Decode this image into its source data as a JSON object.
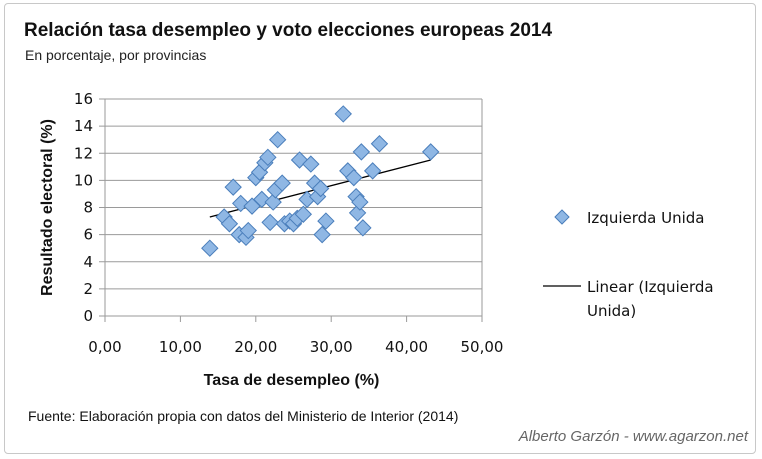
{
  "header": {
    "title": "Relación tasa desempleo y voto elecciones europeas 2014",
    "subtitle": "En porcentaje, por provincias"
  },
  "footer": {
    "source": "Fuente: Elaboración propia con datos del Ministerio de Interior (2014)",
    "credit": "Alberto Garzón - www.agarzon.net"
  },
  "colors": {
    "marker_fill": "#8fb7e4",
    "marker_stroke": "#4a7ebb",
    "trendline": "#000000",
    "grid": "#9a9a9a"
  },
  "chart_data": {
    "type": "scatter",
    "title": "Relación tasa desempleo y voto elecciones europeas 2014",
    "subtitle": "En porcentaje, por provincias",
    "xlabel": "Tasa de desempleo (%)",
    "ylabel": "Resultado electoral (%)",
    "xlim": [
      0,
      50
    ],
    "ylim": [
      0,
      16
    ],
    "x_ticks": [
      "0,00",
      "10,00",
      "20,00",
      "30,00",
      "40,00",
      "50,00"
    ],
    "y_ticks": [
      "0",
      "2",
      "4",
      "6",
      "8",
      "10",
      "12",
      "14",
      "16"
    ],
    "grid": "horizontal",
    "legend_position": "right",
    "series": [
      {
        "name": "Izquierda Unida",
        "marker": "diamond",
        "points": [
          [
            13.9,
            5.0
          ],
          [
            15.8,
            7.3
          ],
          [
            16.5,
            6.8
          ],
          [
            17.0,
            9.5
          ],
          [
            17.8,
            6.0
          ],
          [
            18.0,
            8.3
          ],
          [
            18.7,
            5.8
          ],
          [
            19.0,
            6.3
          ],
          [
            19.5,
            8.1
          ],
          [
            20.0,
            10.2
          ],
          [
            20.5,
            10.6
          ],
          [
            20.8,
            8.6
          ],
          [
            21.2,
            11.3
          ],
          [
            21.6,
            11.7
          ],
          [
            21.9,
            6.9
          ],
          [
            22.3,
            8.4
          ],
          [
            22.6,
            9.3
          ],
          [
            22.9,
            13.0
          ],
          [
            23.5,
            9.8
          ],
          [
            23.8,
            6.8
          ],
          [
            24.5,
            7.0
          ],
          [
            25.0,
            6.8
          ],
          [
            25.5,
            7.2
          ],
          [
            25.8,
            11.5
          ],
          [
            26.3,
            7.5
          ],
          [
            26.8,
            8.6
          ],
          [
            27.3,
            11.2
          ],
          [
            27.8,
            9.8
          ],
          [
            28.2,
            8.8
          ],
          [
            28.6,
            9.4
          ],
          [
            28.8,
            6.0
          ],
          [
            29.3,
            7.0
          ],
          [
            31.6,
            14.9
          ],
          [
            32.2,
            10.7
          ],
          [
            33.0,
            10.2
          ],
          [
            33.3,
            8.8
          ],
          [
            33.5,
            7.6
          ],
          [
            33.8,
            8.4
          ],
          [
            34.0,
            12.1
          ],
          [
            34.2,
            6.5
          ],
          [
            35.5,
            10.7
          ],
          [
            36.4,
            12.7
          ],
          [
            43.2,
            12.1
          ]
        ]
      }
    ],
    "trendline": {
      "name": "Linear (Izquierda Unida)",
      "type": "linear",
      "x_range": [
        13.9,
        43.2
      ],
      "y_range": [
        7.3,
        11.5
      ]
    }
  }
}
